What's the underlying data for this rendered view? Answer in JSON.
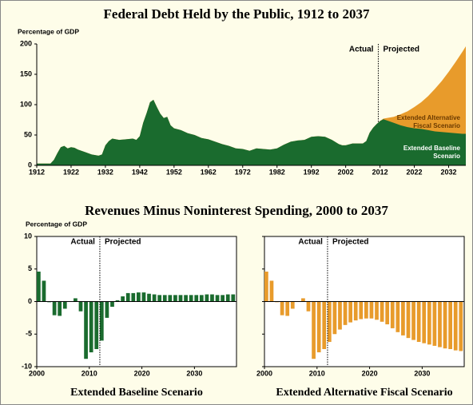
{
  "chart_data": [
    {
      "type": "area",
      "title": "Federal Debt Held by the Public, 1912 to 2037",
      "ylabel": "Percentage of GDP",
      "actual_label": "Actual",
      "projected_label": "Projected",
      "projection_start": 2011.5,
      "xlim": [
        1912,
        2037
      ],
      "xticks": [
        1912,
        1922,
        1932,
        1942,
        1952,
        1962,
        1972,
        1982,
        1992,
        2002,
        2012,
        2022,
        2032
      ],
      "ylim": [
        0,
        200
      ],
      "yticks": [
        0,
        50,
        100,
        150,
        200
      ],
      "x": [
        1912,
        1914,
        1916,
        1917,
        1918,
        1919,
        1920,
        1921,
        1922,
        1923,
        1924,
        1926,
        1928,
        1930,
        1931,
        1932,
        1933,
        1934,
        1936,
        1938,
        1940,
        1941,
        1942,
        1943,
        1944,
        1945,
        1946,
        1947,
        1948,
        1949,
        1950,
        1951,
        1952,
        1954,
        1956,
        1958,
        1960,
        1962,
        1964,
        1966,
        1968,
        1970,
        1972,
        1974,
        1976,
        1978,
        1980,
        1982,
        1984,
        1986,
        1988,
        1990,
        1992,
        1994,
        1996,
        1998,
        2000,
        2001,
        2002,
        2004,
        2006,
        2007,
        2008,
        2009,
        2010,
        2011,
        2012,
        2013,
        2014,
        2016,
        2018,
        2020,
        2022,
        2024,
        2026,
        2028,
        2030,
        2032,
        2034,
        2036,
        2037
      ],
      "series": [
        {
          "name": "Extended Alternative Fiscal Scenario",
          "color": "#e89b2b",
          "values": [
            3,
            3,
            3,
            9,
            20,
            30,
            32,
            28,
            30,
            29,
            26,
            22,
            18,
            16,
            18,
            33,
            40,
            44,
            42,
            43,
            44,
            42,
            48,
            70,
            86,
            104,
            108,
            96,
            85,
            78,
            80,
            66,
            61,
            58,
            53,
            50,
            45,
            43,
            39,
            35,
            32,
            28,
            27,
            24,
            28,
            27,
            26,
            28,
            34,
            39,
            41,
            42,
            47,
            48,
            47,
            42,
            35,
            33,
            33,
            36,
            36,
            36,
            40,
            54,
            62,
            68,
            73,
            77,
            78,
            80,
            84,
            89,
            96,
            104,
            114,
            126,
            139,
            154,
            170,
            187,
            196
          ]
        },
        {
          "name": "Extended Baseline Scenario",
          "color": "#1a6b2e",
          "values": [
            3,
            3,
            3,
            9,
            20,
            30,
            32,
            28,
            30,
            29,
            26,
            22,
            18,
            16,
            18,
            33,
            40,
            44,
            42,
            43,
            44,
            42,
            48,
            70,
            86,
            104,
            108,
            96,
            85,
            78,
            80,
            66,
            61,
            58,
            53,
            50,
            45,
            43,
            39,
            35,
            32,
            28,
            27,
            24,
            28,
            27,
            26,
            28,
            34,
            39,
            41,
            42,
            47,
            48,
            47,
            42,
            35,
            33,
            33,
            36,
            36,
            36,
            40,
            54,
            62,
            68,
            73,
            76,
            74,
            70,
            66,
            63,
            61,
            60,
            58,
            56,
            55,
            54,
            53,
            52,
            52
          ]
        }
      ]
    },
    {
      "type": "bar",
      "title": "Extended Baseline Scenario",
      "ylabel": "Percentage of GDP",
      "actual_label": "Actual",
      "projected_label": "Projected",
      "projection_start": 2012,
      "xlim": [
        2000,
        2038
      ],
      "xticks": [
        2000,
        2010,
        2020,
        2030
      ],
      "ylim": [
        -10,
        10
      ],
      "yticks": [
        -10,
        -5,
        0,
        5,
        10
      ],
      "color": "#1a6b2e",
      "x": [
        2000,
        2001,
        2002,
        2003,
        2004,
        2005,
        2006,
        2007,
        2008,
        2009,
        2010,
        2011,
        2012,
        2013,
        2014,
        2015,
        2016,
        2017,
        2018,
        2019,
        2020,
        2021,
        2022,
        2023,
        2024,
        2025,
        2026,
        2027,
        2028,
        2029,
        2030,
        2031,
        2032,
        2033,
        2034,
        2035,
        2036,
        2037
      ],
      "values": [
        4.6,
        3.2,
        -0.1,
        -2.1,
        -2.2,
        -1.1,
        0,
        0.5,
        -1.5,
        -8.8,
        -7.8,
        -7.3,
        -6.0,
        -2.5,
        -0.8,
        0.2,
        0.8,
        1.3,
        1.3,
        1.4,
        1.4,
        1.2,
        1.1,
        1.0,
        1.0,
        1.0,
        1.0,
        1.0,
        1.0,
        1.0,
        1.0,
        1.0,
        1.1,
        1.1,
        1.0,
        1.0,
        1.1,
        1.1
      ]
    },
    {
      "type": "bar",
      "title": "Extended Alternative Fiscal Scenario",
      "actual_label": "Actual",
      "projected_label": "Projected",
      "projection_start": 2012,
      "xlim": [
        2000,
        2038
      ],
      "xticks": [
        2000,
        2010,
        2020,
        2030
      ],
      "ylim": [
        -10,
        10
      ],
      "yticks": [
        -10,
        -5,
        0,
        5,
        10
      ],
      "ytick_labels": false,
      "color": "#e89b2b",
      "x": [
        2000,
        2001,
        2002,
        2003,
        2004,
        2005,
        2006,
        2007,
        2008,
        2009,
        2010,
        2011,
        2012,
        2013,
        2014,
        2015,
        2016,
        2017,
        2018,
        2019,
        2020,
        2021,
        2022,
        2023,
        2024,
        2025,
        2026,
        2027,
        2028,
        2029,
        2030,
        2031,
        2032,
        2033,
        2034,
        2035,
        2036,
        2037
      ],
      "values": [
        4.6,
        3.2,
        -0.1,
        -2.1,
        -2.2,
        -1.1,
        0,
        0.5,
        -1.5,
        -8.8,
        -7.8,
        -7.3,
        -6.2,
        -5.0,
        -4.3,
        -3.6,
        -3.2,
        -2.9,
        -2.7,
        -2.6,
        -2.6,
        -2.8,
        -3.1,
        -3.5,
        -4.1,
        -4.7,
        -5.2,
        -5.6,
        -5.9,
        -6.2,
        -6.4,
        -6.6,
        -6.8,
        -7.0,
        -7.2,
        -7.3,
        -7.5,
        -7.6
      ]
    }
  ],
  "section_title": "Revenues Minus Noninterest Spending, 2000 to 2037"
}
